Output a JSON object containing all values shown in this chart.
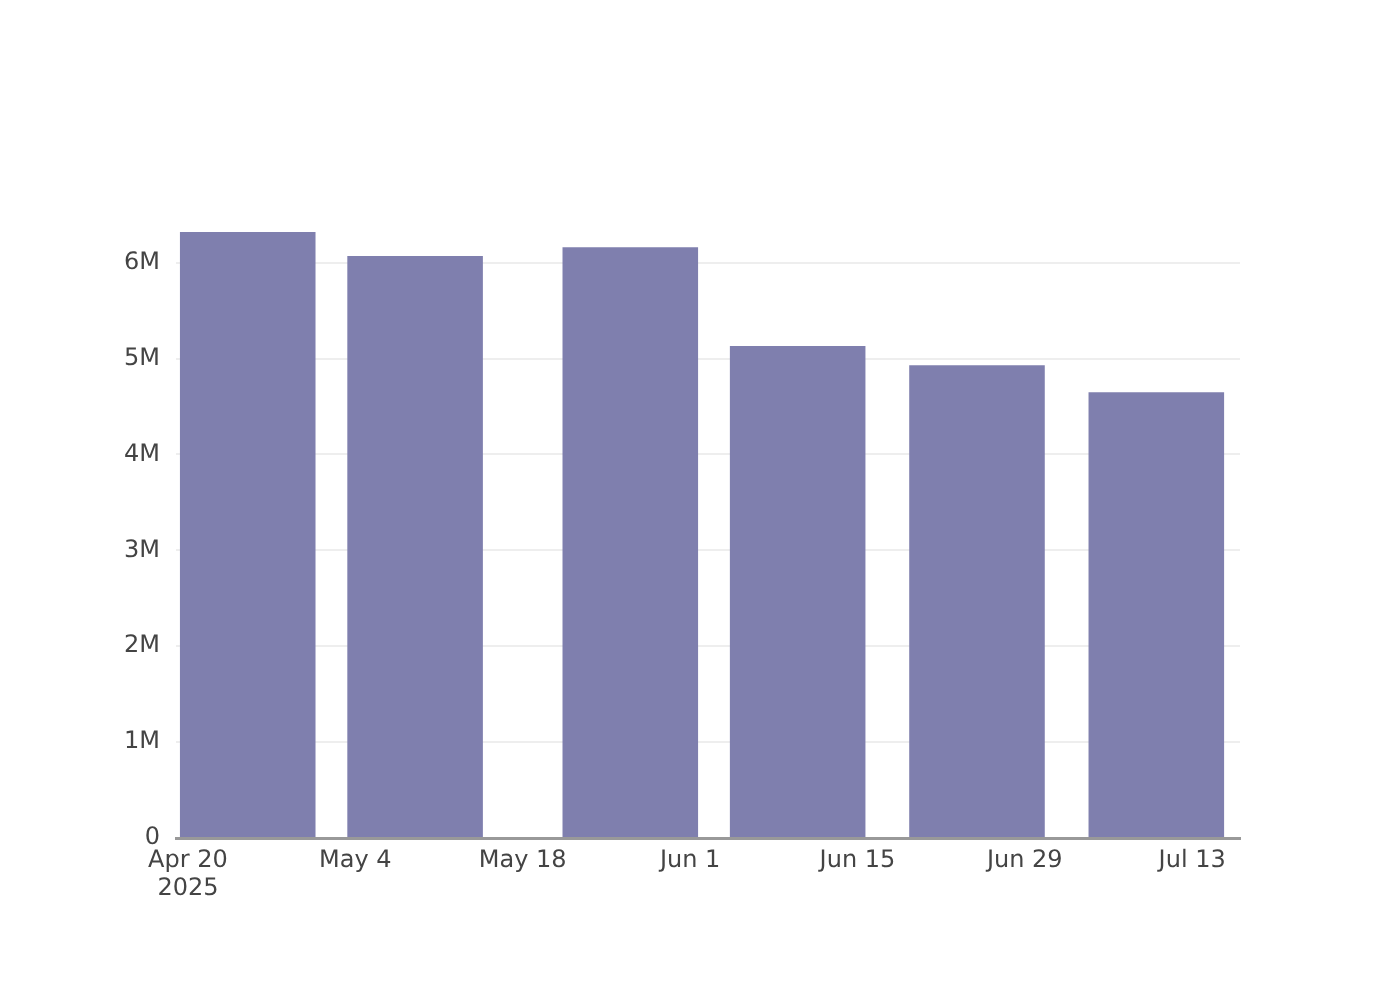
{
  "chart_data": {
    "type": "bar",
    "x": [
      "2025-04-25",
      "2025-05-09",
      "2025-05-27",
      "2025-06-10",
      "2025-06-25",
      "2025-07-10"
    ],
    "values": [
      6320000,
      6070000,
      6160000,
      5130000,
      4930000,
      4650000
    ],
    "color": "#7f7fae",
    "xlim": [
      "2025-04-19",
      "2025-07-17"
    ],
    "xticks": [
      {
        "value": "2025-04-20",
        "label": "Apr 20\n2025"
      },
      {
        "value": "2025-05-04",
        "label": "May 4"
      },
      {
        "value": "2025-05-18",
        "label": "May 18"
      },
      {
        "value": "2025-06-01",
        "label": "Jun 1"
      },
      {
        "value": "2025-06-15",
        "label": "Jun 15"
      },
      {
        "value": "2025-06-29",
        "label": "Jun 29"
      },
      {
        "value": "2025-07-13",
        "label": "Jul 13"
      }
    ],
    "ylim": [
      0,
      6320000
    ],
    "yticks": [
      0,
      {
        "value": 1000000,
        "label": "1M"
      },
      {
        "value": 2000000,
        "label": "2M"
      },
      {
        "value": 3000000,
        "label": "3M"
      },
      {
        "value": 4000000,
        "label": "4M"
      },
      {
        "value": 5000000,
        "label": "5M"
      },
      {
        "value": 6000000,
        "label": "6M"
      }
    ],
    "grid": "y"
  }
}
